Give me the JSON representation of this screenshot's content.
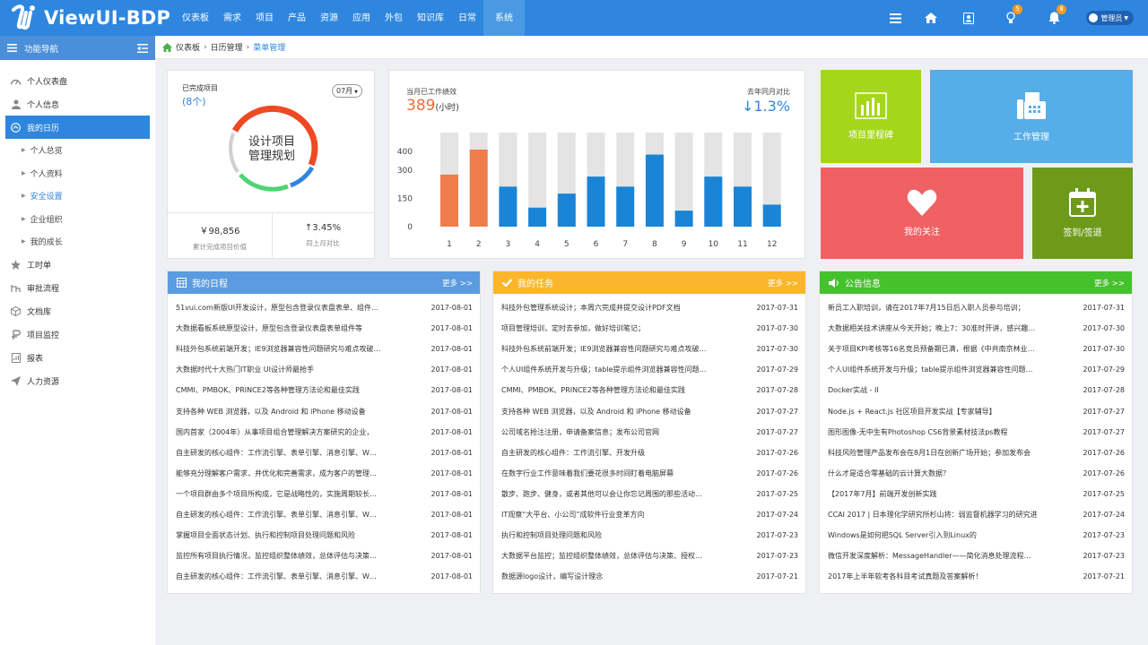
{
  "app": {
    "title": "ViewUI-BDP"
  },
  "nav": [
    "仪表板",
    "需求",
    "项目",
    "产品",
    "资源",
    "应用",
    "外包",
    "知识库",
    "日常",
    "系统"
  ],
  "nav_active": 9,
  "topright": {
    "badge_bulb": "5",
    "badge_bell": "8",
    "admin": "管理员"
  },
  "sidebar": {
    "title": "功能导航",
    "items": [
      {
        "label": "个人仪表盘",
        "icon": "dashboard-icon"
      },
      {
        "label": "个人信息",
        "icon": "user-icon"
      },
      {
        "label": "我的日历",
        "icon": "calendar-icon",
        "active": true
      },
      {
        "label": "工时单",
        "icon": "star-icon"
      },
      {
        "label": "审批流程",
        "icon": "flow-icon"
      },
      {
        "label": "文档库",
        "icon": "cube-icon"
      },
      {
        "label": "项目监控",
        "icon": "monitor-icon"
      },
      {
        "label": "报表",
        "icon": "report-icon"
      },
      {
        "label": "人力资源",
        "icon": "send-icon"
      }
    ],
    "subitems": [
      "个人总览",
      "个人资料",
      "安全设置",
      "企业组织",
      "我的成长"
    ],
    "sub_current": 2
  },
  "breadcrumb": {
    "home": "仪表板",
    "mid": "日历管理",
    "current": "菜单管理"
  },
  "project_card": {
    "done_label": "已完成项目",
    "done_count": "(8个)",
    "month": "07月",
    "ring_line1": "设计项目",
    "ring_line2": "管理规划",
    "stat1_value": "￥98,856",
    "stat1_label": "累计完成项目价值",
    "stat2_value": "↑3.45%",
    "stat2_label": "同上月对比"
  },
  "perf_card": {
    "title": "当月已工作绩效",
    "value": "389",
    "unit": "(小时)",
    "right_title": "去年同月对比",
    "right_value": "↓1.3%"
  },
  "chart_data": {
    "type": "bar",
    "categories": [
      "1",
      "2",
      "3",
      "4",
      "5",
      "6",
      "7",
      "8",
      "9",
      "10",
      "11",
      "12"
    ],
    "series": [
      {
        "values": [
          260,
          385,
          200,
          95,
          165,
          250,
          200,
          360,
          80,
          250,
          200,
          110
        ]
      }
    ],
    "max_values": [
      470,
      470,
      470,
      470,
      470,
      470,
      470,
      470,
      470,
      470,
      470,
      470
    ],
    "yticks": [
      "400",
      "300",
      "150",
      "0"
    ],
    "ylim": [
      0,
      470
    ],
    "highlight_color": "#f07b4b",
    "bar_color": "#1a85d6",
    "bg_bar_color": "#e4e4e4",
    "orange_indices": [
      0,
      1
    ]
  },
  "tiles": [
    {
      "label": "项目里程碑",
      "color": "#a6d619",
      "icon": "bar-chart-icon"
    },
    {
      "label": "工作管理",
      "color": "#56ade8",
      "icon": "fax-icon"
    },
    {
      "label": "我的关注",
      "color": "#ef6163",
      "icon": "heart-icon"
    },
    {
      "label": "签到/签退",
      "color": "#6e9a1a",
      "icon": "calendar-plus-icon"
    }
  ],
  "panels": [
    {
      "title": "我的日程",
      "more": "更多 >>",
      "color": "#5b9be0",
      "icon": "calendar-grid-icon",
      "rows": [
        [
          "51vui.com新版UI开发设计，原型包含登录仪表盘表单、组件…",
          "2017-08-01"
        ],
        [
          "大数据看板系统原型设计，原型包含登录仪表盘表单组件等",
          "2017-08-01"
        ],
        [
          "科技外包系统前端开发；IE9浏览器兼容性问题研究与难点攻破…",
          "2017-08-01"
        ],
        [
          "大数据时代十大热门IT职业 UI设计师最抢手",
          "2017-08-01"
        ],
        [
          "CMMI、PMBOK、PRINCE2等各种管理方法论和最佳实践",
          "2017-08-01"
        ],
        [
          "支持各种 WEB 浏览器，以及 Android 和 iPhone 移动设备",
          "2017-08-01"
        ],
        [
          "国内首家（2004年）从事项目组合管理解决方案研究的企业，",
          "2017-08-01"
        ],
        [
          "自主研发的核心组件：工作流引擎、表单引擎、消息引擎、W…",
          "2017-08-01"
        ],
        [
          "能够充分理解客户需求，并优化和完善需求，成为客户的管理…",
          "2017-08-01"
        ],
        [
          "一个项目群由多个项目所构成，它是战略性的，实施周期较长…",
          "2017-08-01"
        ],
        [
          "自主研发的核心组件：工作流引擎、表单引擎、消息引擎、W…",
          "2017-08-01"
        ],
        [
          "掌握项目全面状态计划、执行和控制项目处理问题和风险",
          "2017-08-01"
        ],
        [
          "监控所有项目执行情况，监控组织整体绩效，总体评估与决策…",
          "2017-08-01"
        ],
        [
          "自主研发的核心组件：工作流引擎、表单引擎、消息引擎、W…",
          "2017-08-01"
        ]
      ]
    },
    {
      "title": "我的任务",
      "more": "更多 >>",
      "color": "#fbb62b",
      "icon": "check-icon",
      "rows": [
        [
          "科技外包管理系统设计；本周六完成并提交设计PDF文档",
          "2017-07-31"
        ],
        [
          "项目管理培训，定时去参加，做好培训笔记；",
          "2017-07-30"
        ],
        [
          "科技外包系统前端开发；IE9浏览器兼容性问题研究与难点攻破…",
          "2017-07-30"
        ],
        [
          "个人UI组件系统开发与升级；table提示组件浏览器兼容性问题…",
          "2017-07-29"
        ],
        [
          "CMMI、PMBOK、PRINCE2等各种管理方法论和最佳实践",
          "2017-07-28"
        ],
        [
          "支持各种 WEB 浏览器，以及 Android 和 iPhone 移动设备",
          "2017-07-27"
        ],
        [
          "公司域名抢注注册，申请备案信息；发布公司官网",
          "2017-07-27"
        ],
        [
          "自主研发的核心组件：工作流引擎、开发升级",
          "2017-07-26"
        ],
        [
          "在数字行业工作意味着我们要花很多时间盯着电脑屏幕",
          "2017-07-26"
        ],
        [
          "散步、跑步、健身，或者其他可以会让你忘记周围的那些活动…",
          "2017-07-25"
        ],
        [
          "IT观察“大平台、小公司”成软件行业变革方向",
          "2017-07-24"
        ],
        [
          "执行和控制项目处理问题和风险",
          "2017-07-23"
        ],
        [
          "大数据平台监控；监控组织整体绩效，总体评估与决策、授权…",
          "2017-07-23"
        ],
        [
          "数据源logo设计，编写设计理念",
          "2017-07-21"
        ]
      ]
    },
    {
      "title": "公告信息",
      "more": "更多 >>",
      "color": "#45c12e",
      "icon": "speaker-icon",
      "rows": [
        [
          "新员工入职培训，请在2017年7月15日后入职人员参与培训；",
          "2017-07-31"
        ],
        [
          "大数据相关技术讲座从今天开始；晚上7：30准时开讲，感兴趣…",
          "2017-07-30"
        ],
        [
          "关于项目KPI考核等16名竞员预备期已满，根据《中共南京林业…",
          "2017-07-30"
        ],
        [
          "个人UI组件系统开发与升级；table提示组件浏览器兼容性问题…",
          "2017-07-29"
        ],
        [
          "Docker实战 - II",
          "2017-07-28"
        ],
        [
          "Node.js + React.js 社区项目开发实战【专家辅导】",
          "2017-07-27"
        ],
        [
          "图形图像-无中生有Photoshop CS6背景素材技法ps教程",
          "2017-07-27"
        ],
        [
          "科技风险管理产品发布会在8月1日在创新广场开始；参加发布会",
          "2017-07-26"
        ],
        [
          "什么才是适合零基础的云计算大数据？",
          "2017-07-26"
        ],
        [
          "【2017年7月】前端开发创新实践",
          "2017-07-25"
        ],
        [
          "CCAI 2017 | 日本理化学研究所杉山将：弱监督机器学习的研究进",
          "2017-07-24"
        ],
        [
          "Windows是如何把SQL Server引入到Linux的",
          "2017-07-23"
        ],
        [
          "微信开发深度解析：MessageHandler——简化消息处理流程…",
          "2017-07-23"
        ],
        [
          "2017年上半年软考各科目考试真题及答案解析！",
          "2017-07-21"
        ]
      ]
    }
  ]
}
